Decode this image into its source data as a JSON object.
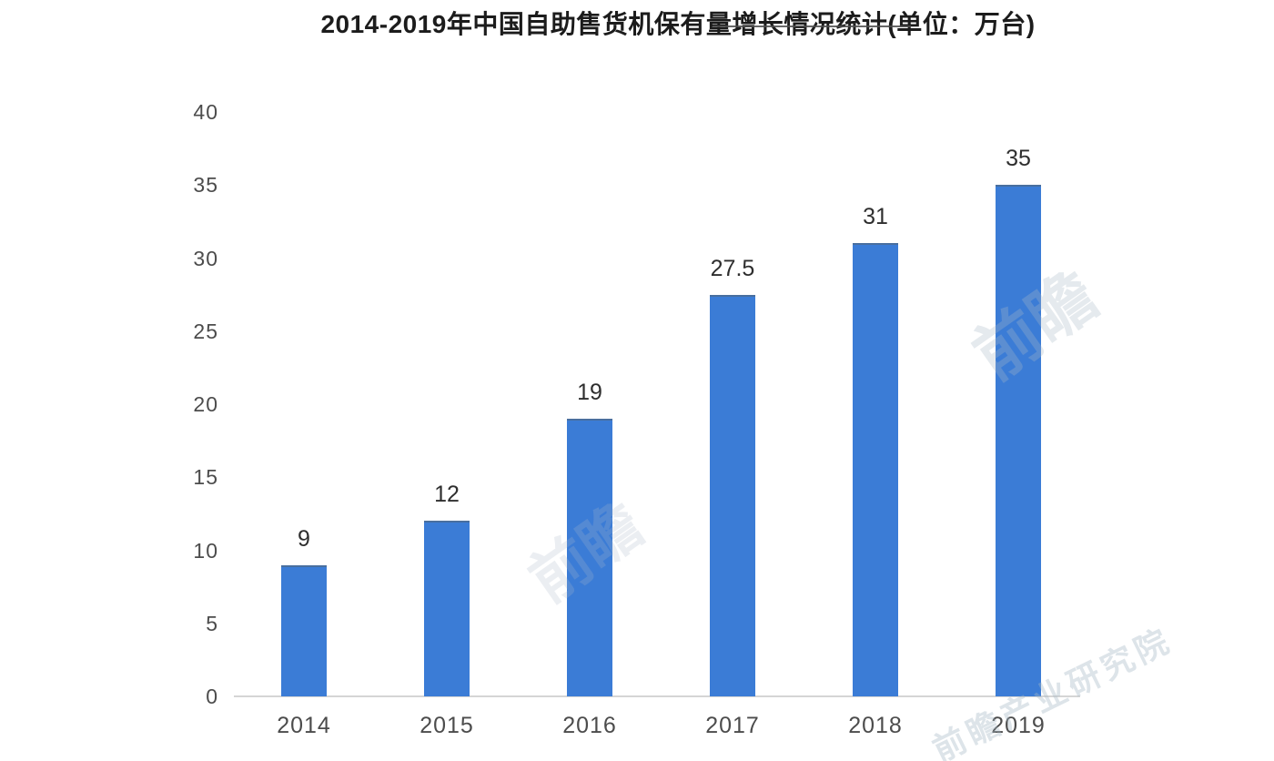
{
  "title": "2014-2019年中国自助售货机保有量增长情况统计(单位：万台)",
  "chart_data": {
    "type": "bar",
    "title": "2014-2019年中国自助售货机保有量增长情况统计(单位：万台)",
    "categories": [
      "2014",
      "2015",
      "2016",
      "2017",
      "2018",
      "2019"
    ],
    "values": [
      9,
      12,
      19,
      27.5,
      31,
      35
    ],
    "value_labels": [
      "9",
      "12",
      "19",
      "27.5",
      "31",
      "35"
    ],
    "xlabel": "",
    "ylabel": "",
    "ylim": [
      0,
      40
    ],
    "yticks": [
      0,
      5,
      10,
      15,
      20,
      25,
      30,
      35,
      40
    ],
    "grid": false,
    "legend_position": "none",
    "bar_color": "#3b7cd6",
    "axis_line_color": "#d5d5d5",
    "tick_label_color": "#4c4c4c",
    "data_label_color": "#2e2e2e",
    "title_color": "#1c1c1c"
  },
  "watermarks": [
    {
      "text": "前瞻"
    },
    {
      "text": "前瞻"
    },
    {
      "text": "前瞻产业研究院"
    }
  ]
}
